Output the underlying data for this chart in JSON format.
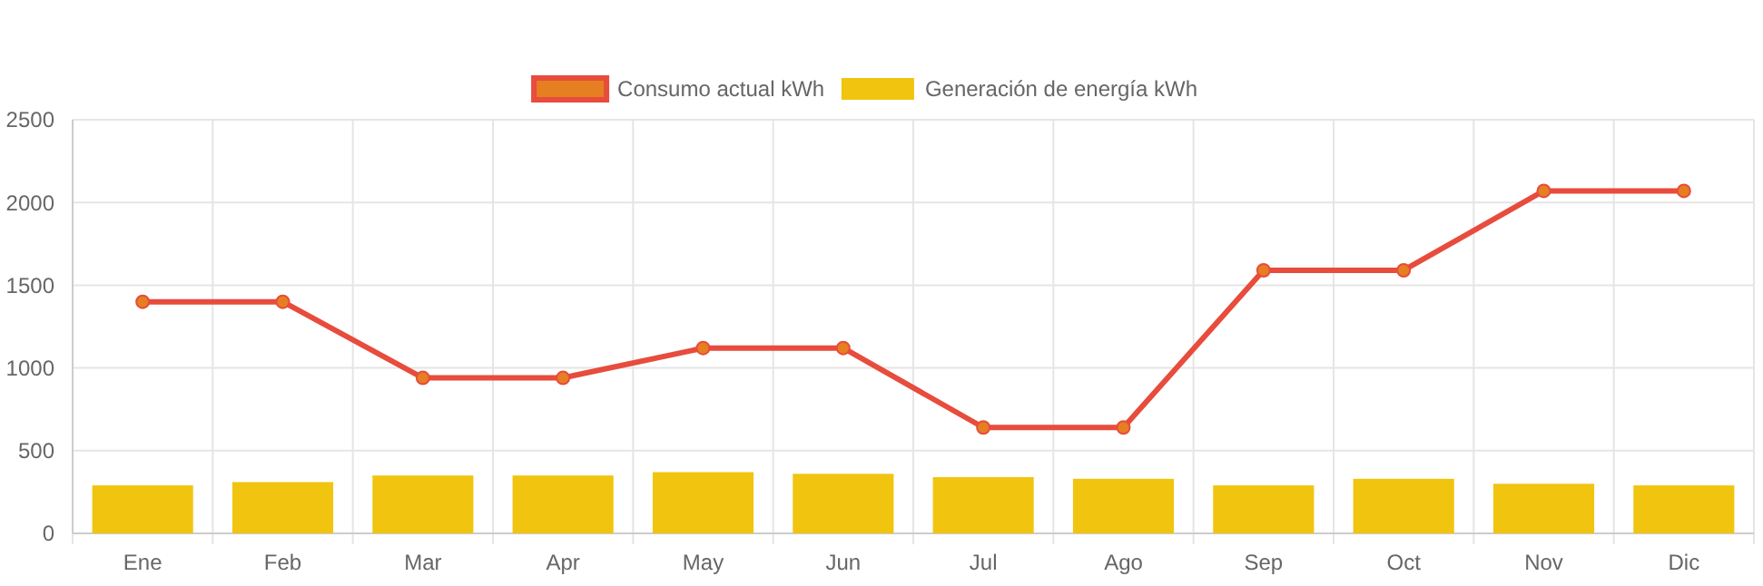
{
  "chart_data": {
    "type": "bar",
    "categories": [
      "Ene",
      "Feb",
      "Mar",
      "Apr",
      "May",
      "Jun",
      "Jul",
      "Ago",
      "Sep",
      "Oct",
      "Nov",
      "Dic"
    ],
    "series": [
      {
        "name": "Consumo actual kWh",
        "type": "line",
        "color": "#e74c3c",
        "values": [
          1400,
          1400,
          940,
          940,
          1120,
          1120,
          640,
          640,
          1590,
          1590,
          2070,
          2070
        ]
      },
      {
        "name": "Generación de energía kWh",
        "color": "#f1c40f",
        "values": [
          290,
          310,
          350,
          350,
          370,
          360,
          340,
          330,
          290,
          330,
          300,
          290
        ]
      }
    ],
    "ylim": [
      0,
      2500
    ],
    "yticks": [
      0,
      500,
      1000,
      1500,
      2000,
      2500
    ],
    "grid": true,
    "legend": "top",
    "marker": "circle",
    "line_style": "solid"
  }
}
